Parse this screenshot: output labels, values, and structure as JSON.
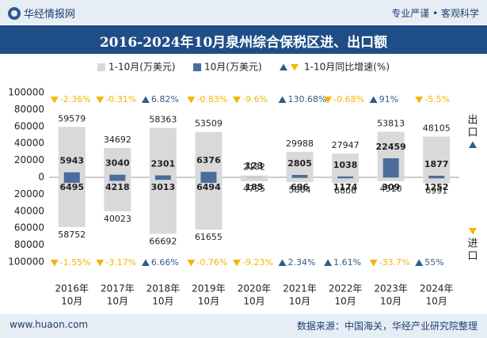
{
  "header": {
    "brand": "华经情报网",
    "slogan": "专业严谨 • 客观科学",
    "title": "2016-2024年10月泉州综合保税区进、出口额"
  },
  "footer": {
    "website": "www.huaon.com",
    "source": "数据来源：中国海关，华经产业研究院整理"
  },
  "colors": {
    "cumulative_bar": "#d9d9d9",
    "monthly_bar": "#4a6d9c",
    "growth_up": "#2f5d8a",
    "growth_down": "#f2b705",
    "header_bg": "#1f4e86"
  },
  "chart_data": {
    "type": "bar",
    "categories": [
      "2016年\n10月",
      "2017年\n10月",
      "2018年\n10月",
      "2019年\n10月",
      "2020年\n10月",
      "2021年\n10月",
      "2022年\n10月",
      "2023年\n10月",
      "2024年\n10月"
    ],
    "legend": [
      "1-10月(万美元)",
      "10月(万美元)",
      "1-10月同比增速(%)"
    ],
    "export": {
      "label": "出口",
      "cumulative": [
        59579,
        34692,
        58363,
        53509,
        2132,
        29988,
        27947,
        53813,
        48105
      ],
      "monthly": [
        5943,
        3040,
        2301,
        6376,
        123,
        2805,
        1038,
        22459,
        1877
      ],
      "growth_text": [
        "-2.36%",
        "-0.31%",
        "6.82%",
        "-0.83%",
        "-9.6%",
        "130.68%",
        "-0.68%",
        "91%",
        "-5.5%"
      ],
      "growth_up": [
        false,
        false,
        true,
        false,
        false,
        true,
        false,
        true,
        false
      ]
    },
    "import": {
      "label": "进口",
      "cumulative": [
        58752,
        40023,
        66692,
        61655,
        4755,
        5864,
        6806,
        4510,
        6991
      ],
      "monthly": [
        6495,
        4218,
        3013,
        6494,
        185,
        696,
        1174,
        309,
        1252
      ],
      "growth_text": [
        "-1.55%",
        "-3.17%",
        "6.66%",
        "-0.76%",
        "-9.23%",
        "2.34%",
        "1.61%",
        "-33.7%",
        "55%"
      ],
      "growth_up": [
        false,
        false,
        true,
        false,
        false,
        true,
        true,
        false,
        true
      ]
    },
    "y_ticks": [
      "100000",
      "80000",
      "60000",
      "40000",
      "20000",
      "0",
      "20000",
      "40000",
      "60000",
      "80000",
      "100000"
    ],
    "ylim": [
      -100000,
      100000
    ],
    "legend_position": "top-center",
    "grid": false
  }
}
